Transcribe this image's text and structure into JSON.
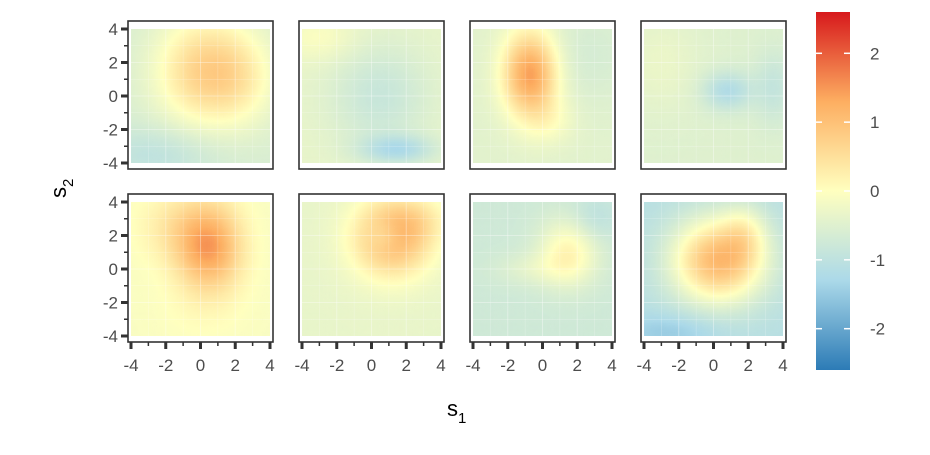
{
  "chart_data": {
    "type": "heatmap",
    "layout": "2 rows x 4 columns, shared axes",
    "xlabel": "s",
    "xlabel_subscript": "1",
    "ylabel": "s",
    "ylabel_subscript": "2",
    "xlim": [
      -4,
      4
    ],
    "ylim": [
      -4,
      4
    ],
    "x_ticks": [
      -4,
      -2,
      0,
      2,
      4
    ],
    "y_ticks": [
      -4,
      -2,
      0,
      2,
      4
    ],
    "x_tick_labels": [
      "-4",
      "-2",
      "0",
      "2",
      "4"
    ],
    "y_tick_labels": [
      "-4",
      "-2",
      "0",
      "2",
      "4"
    ],
    "colorbar": {
      "range": [
        -2.6,
        2.6
      ],
      "ticks": [
        2,
        1,
        0,
        -1,
        -2
      ],
      "tick_labels": [
        "2",
        "1",
        "0",
        "-1",
        "-2"
      ],
      "palette": [
        "#2c7bb6",
        "#abd9e9",
        "#ffffbf",
        "#fdae61",
        "#d7191c"
      ],
      "placement": "right"
    },
    "panels": [
      {
        "row": 1,
        "col": 1,
        "base": -0.6,
        "bumps": [
          {
            "x": 0.3,
            "y": 1.5,
            "amp": 1.3,
            "sx": 2.0,
            "sy": 2.3
          },
          {
            "x": 2.5,
            "y": 1.0,
            "amp": 0.4,
            "sx": 1.5,
            "sy": 2.0
          },
          {
            "x": -2.5,
            "y": -3.5,
            "amp": -0.4,
            "sx": 2.5,
            "sy": 1.2
          }
        ]
      },
      {
        "row": 1,
        "col": 2,
        "base": -0.35,
        "bumps": [
          {
            "x": 0.5,
            "y": 0.0,
            "amp": -0.5,
            "sx": 2.0,
            "sy": 2.2
          },
          {
            "x": 1.5,
            "y": -3.2,
            "amp": -0.8,
            "sx": 1.5,
            "sy": 0.6
          },
          {
            "x": -3.0,
            "y": 3.5,
            "amp": 0.3,
            "sx": 1.5,
            "sy": 1.0
          }
        ]
      },
      {
        "row": 1,
        "col": 3,
        "base": -0.45,
        "bumps": [
          {
            "x": -0.7,
            "y": 1.3,
            "amp": 1.9,
            "sx": 1.1,
            "sy": 1.8
          },
          {
            "x": 0.5,
            "y": -1.5,
            "amp": 0.3,
            "sx": 1.0,
            "sy": 1.0
          },
          {
            "x": 2.5,
            "y": 2.5,
            "amp": -0.2,
            "sx": 2.0,
            "sy": 2.0
          }
        ]
      },
      {
        "row": 1,
        "col": 4,
        "base": -0.5,
        "bumps": [
          {
            "x": 0.8,
            "y": 0.3,
            "amp": -0.7,
            "sx": 1.0,
            "sy": 0.8
          },
          {
            "x": 3.5,
            "y": 0.5,
            "amp": -0.4,
            "sx": 0.8,
            "sy": 1.5
          },
          {
            "x": -3.0,
            "y": 2.0,
            "amp": 0.2,
            "sx": 1.5,
            "sy": 2.0
          }
        ]
      },
      {
        "row": 2,
        "col": 1,
        "base": -0.1,
        "bumps": [
          {
            "x": 0.5,
            "y": 1.3,
            "amp": 1.5,
            "sx": 1.3,
            "sy": 1.8
          },
          {
            "x": -1.5,
            "y": 2.5,
            "amp": 0.4,
            "sx": 1.5,
            "sy": 1.5
          },
          {
            "x": 0.0,
            "y": -2.5,
            "amp": 0.1,
            "sx": 2.0,
            "sy": 1.5
          }
        ]
      },
      {
        "row": 2,
        "col": 2,
        "base": -0.35,
        "bumps": [
          {
            "x": 1.2,
            "y": 1.8,
            "amp": 1.5,
            "sx": 1.6,
            "sy": 1.6
          },
          {
            "x": 0.8,
            "y": 2.0,
            "amp": -0.5,
            "sx": 0.7,
            "sy": 0.7
          },
          {
            "x": 2.5,
            "y": 3.0,
            "amp": 0.4,
            "sx": 1.5,
            "sy": 1.0
          }
        ]
      },
      {
        "row": 2,
        "col": 3,
        "base": -0.75,
        "bumps": [
          {
            "x": 1.5,
            "y": 1.0,
            "amp": 0.9,
            "sx": 1.2,
            "sy": 1.4
          },
          {
            "x": -0.5,
            "y": 0.0,
            "amp": 0.3,
            "sx": 1.6,
            "sy": 0.7
          },
          {
            "x": 3.0,
            "y": 3.0,
            "amp": -0.3,
            "sx": 1.0,
            "sy": 1.0
          }
        ]
      },
      {
        "row": 2,
        "col": 4,
        "base": -1.1,
        "bumps": [
          {
            "x": 0.3,
            "y": 0.5,
            "amp": 2.2,
            "sx": 1.9,
            "sy": 1.8
          },
          {
            "x": 1.8,
            "y": 2.2,
            "amp": 0.6,
            "sx": 0.9,
            "sy": 1.2
          },
          {
            "x": -2.5,
            "y": -3.8,
            "amp": -0.4,
            "sx": 2.0,
            "sy": 0.8
          }
        ]
      }
    ]
  }
}
